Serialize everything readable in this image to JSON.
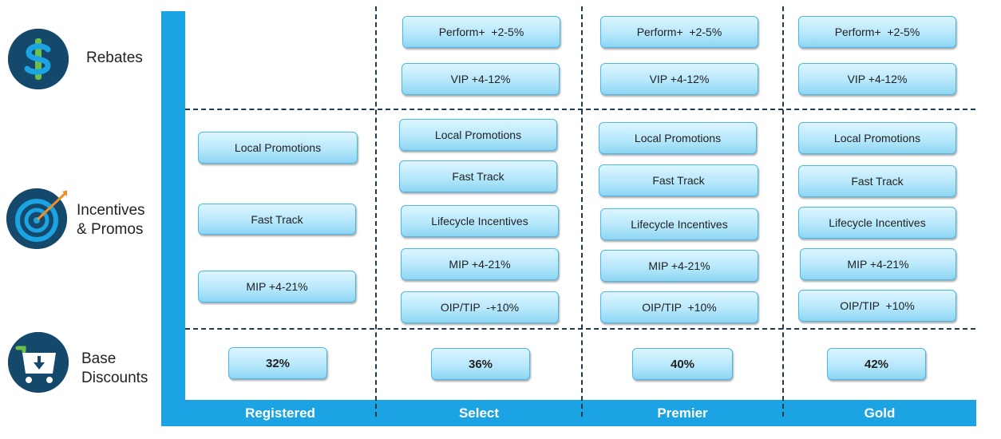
{
  "categories": {
    "rebates": {
      "label": "Rebates",
      "icon": "dollar-icon"
    },
    "incentives": {
      "label_line1": "Incentives",
      "label_line2": "& Promos",
      "icon": "target-arrow-icon"
    },
    "base": {
      "label_line1": "Base",
      "label_line2": "Discounts",
      "icon": "cart-download-icon"
    }
  },
  "tiers": [
    "Registered",
    "Select",
    "Premier",
    "Gold"
  ],
  "cells": {
    "registered": {
      "promotions": [
        "Local Promotions",
        "Fast Track",
        "MIP +4-21%"
      ],
      "discount": "32%"
    },
    "select": {
      "rebates": [
        "Perform+  +2-5%",
        "VIP +4-12%"
      ],
      "promotions": [
        "Local Promotions",
        "Fast Track",
        "Lifecycle Incentives",
        "MIP +4-21%",
        "OIP/TIP  -+10%"
      ],
      "discount": "36%"
    },
    "premier": {
      "rebates": [
        "Perform+  +2-5%",
        "VIP +4-12%"
      ],
      "promotions": [
        "Local Promotions",
        "Fast Track",
        "Lifecycle Incentives",
        "MIP +4-21%",
        "OIP/TIP  +10%"
      ],
      "discount": "40%"
    },
    "gold": {
      "rebates": [
        "Perform+  +2-5%",
        "VIP +4-12%"
      ],
      "promotions": [
        "Local Promotions",
        "Fast Track",
        "Lifecycle Incentives",
        "MIP +4-21%",
        "OIP/TIP  +10%"
      ],
      "discount": "42%"
    }
  },
  "colors": {
    "axis": "#1ba3e3",
    "icon_bg": "#14496b",
    "pill_border": "#4bb8ea",
    "dash": "#1f3a4d",
    "accent_green": "#6cc04a",
    "accent_orange": "#f28c28"
  }
}
